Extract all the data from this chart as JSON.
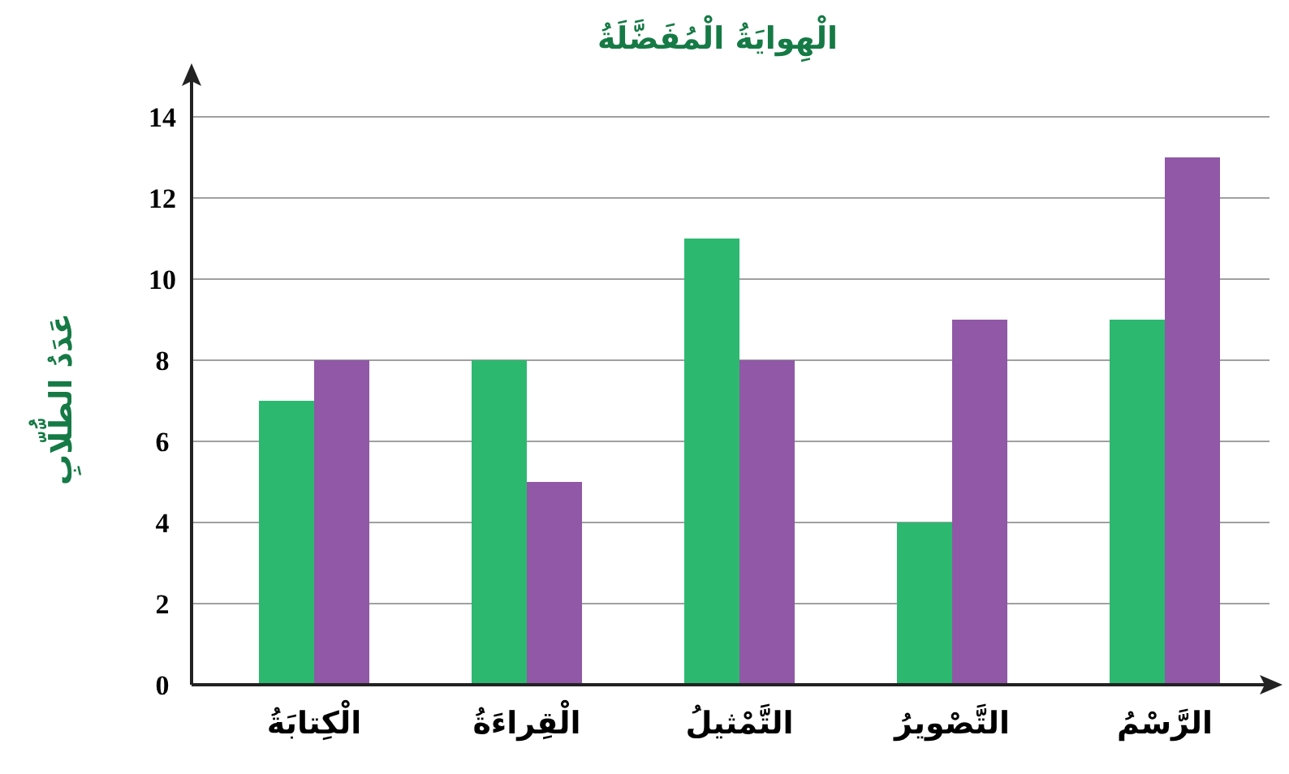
{
  "chart_data": {
    "type": "bar",
    "title": "الْهِوايَةُ الْمُفَضَّلَةُ",
    "ylabel": "عَدَدُ الطُّلّابِ",
    "categories": [
      "الْكِتابَةُ",
      "الْقِراءَةُ",
      "التَّمْثيلُ",
      "التَّصْويرُ",
      "الرَّسْمُ"
    ],
    "series": [
      {
        "color": "#2db870",
        "values": [
          7,
          8,
          11,
          4,
          9
        ]
      },
      {
        "color": "#9058a6",
        "values": [
          8,
          5,
          8,
          9,
          13
        ]
      }
    ],
    "ylim": [
      0,
      15
    ],
    "yticks": [
      0,
      2,
      4,
      6,
      8,
      10,
      12,
      14
    ],
    "grid": "y"
  }
}
